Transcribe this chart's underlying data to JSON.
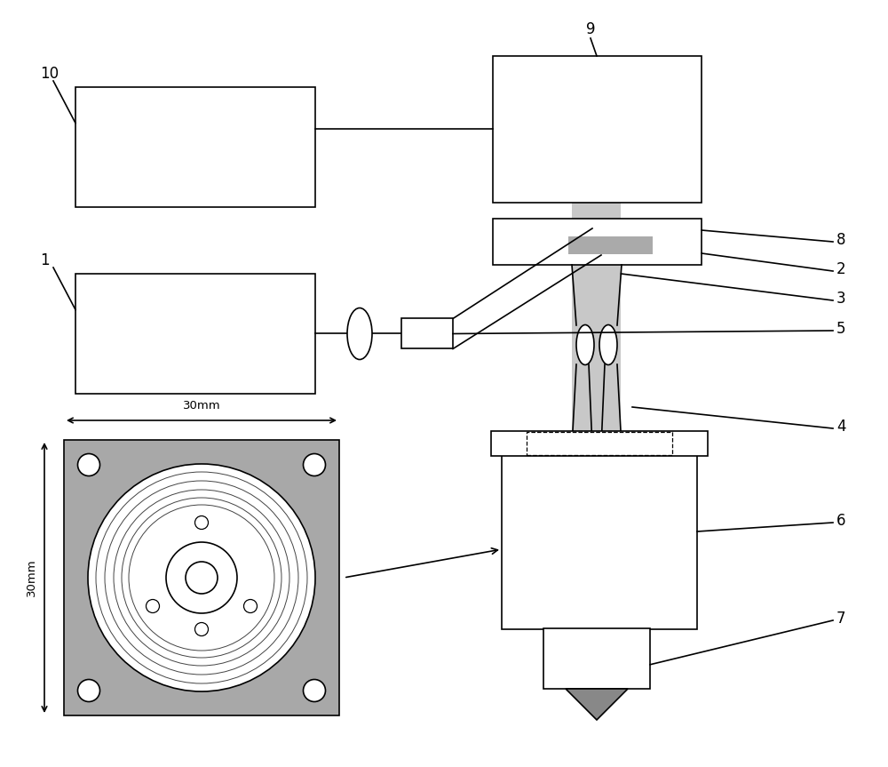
{
  "bg_color": "#ffffff",
  "line_color": "#000000",
  "gray_col": "#c8c8c8",
  "dark_gray": "#888888",
  "med_gray": "#a8a8a8",
  "figsize": [
    10.0,
    8.63
  ],
  "dpi": 100,
  "xlim": [
    0,
    10
  ],
  "ylim": [
    0,
    8.63
  ]
}
